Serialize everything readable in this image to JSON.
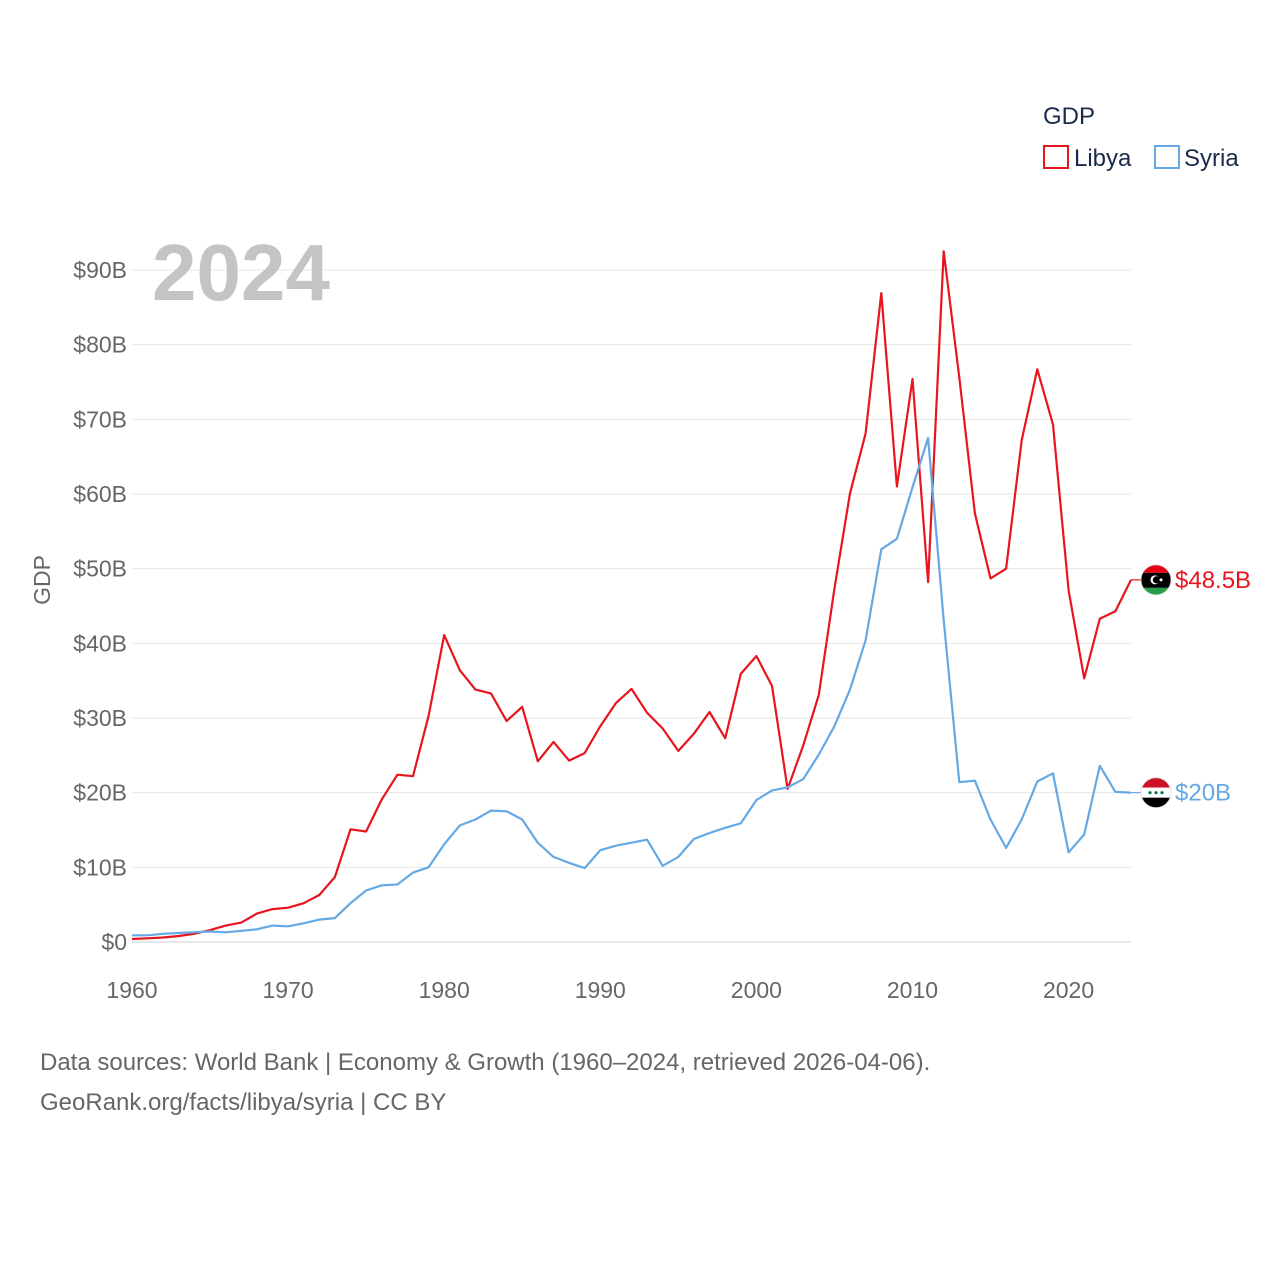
{
  "chart_data": {
    "type": "line",
    "title": "GDP",
    "ylabel": "GDP",
    "xlabel": "",
    "year_overlay": "2024",
    "xlim": [
      1960,
      2024
    ],
    "ylim": [
      0,
      90
    ],
    "x_ticks": [
      "1960",
      "1970",
      "1980",
      "1990",
      "2000",
      "2010",
      "2020"
    ],
    "y_ticks": [
      "$0",
      "$10B",
      "$20B",
      "$30B",
      "$40B",
      "$50B",
      "$60B",
      "$70B",
      "$80B",
      "$90B"
    ],
    "x": [
      1960,
      1961,
      1962,
      1963,
      1964,
      1965,
      1966,
      1967,
      1968,
      1969,
      1970,
      1971,
      1972,
      1973,
      1974,
      1975,
      1976,
      1977,
      1978,
      1979,
      1980,
      1981,
      1982,
      1983,
      1984,
      1985,
      1986,
      1987,
      1988,
      1989,
      1990,
      1991,
      1992,
      1993,
      1994,
      1995,
      1996,
      1997,
      1998,
      1999,
      2000,
      2001,
      2002,
      2003,
      2004,
      2005,
      2006,
      2007,
      2008,
      2009,
      2010,
      2011,
      2012,
      2013,
      2014,
      2015,
      2016,
      2017,
      2018,
      2019,
      2020,
      2021,
      2022,
      2023,
      2024
    ],
    "series": [
      {
        "name": "Libya",
        "color": "#e8141e",
        "flag": "libya-flag",
        "end_label": "$48.5B",
        "values": [
          0.4,
          0.5,
          0.6,
          0.8,
          1.1,
          1.6,
          2.2,
          2.6,
          3.8,
          4.4,
          4.6,
          5.2,
          6.3,
          8.7,
          15.1,
          14.8,
          19.1,
          22.4,
          22.2,
          30.3,
          41.1,
          36.4,
          33.8,
          33.3,
          29.6,
          31.5,
          24.2,
          26.8,
          24.3,
          25.3,
          28.9,
          32.0,
          33.9,
          30.7,
          28.6,
          25.6,
          27.9,
          30.8,
          27.3,
          35.9,
          38.3,
          34.3,
          20.5,
          26.3,
          33.1,
          47.3,
          60.1,
          68.1,
          86.9,
          61.0,
          75.4,
          48.2,
          92.5,
          75.6,
          57.4,
          48.7,
          50.0,
          67.2,
          76.7,
          69.3,
          47.1,
          35.3,
          43.3,
          44.3,
          48.5
        ]
      },
      {
        "name": "Syria",
        "color": "#64a8e4",
        "flag": "syria-flag",
        "end_label": "$20B",
        "values": [
          0.9,
          0.9,
          1.1,
          1.2,
          1.3,
          1.4,
          1.3,
          1.5,
          1.7,
          2.2,
          2.1,
          2.5,
          3.0,
          3.2,
          5.2,
          6.9,
          7.6,
          7.7,
          9.3,
          10.0,
          13.1,
          15.6,
          16.4,
          17.6,
          17.5,
          16.4,
          13.3,
          11.4,
          10.6,
          9.9,
          12.3,
          12.9,
          13.3,
          13.7,
          10.2,
          11.4,
          13.8,
          14.6,
          15.3,
          15.9,
          19.0,
          20.3,
          20.7,
          21.8,
          25.1,
          28.9,
          33.8,
          40.4,
          52.6,
          54.0,
          60.9,
          67.5,
          43.1,
          21.4,
          21.6,
          16.4,
          12.6,
          16.4,
          21.5,
          22.6,
          12.0,
          14.4,
          23.6,
          20.1,
          20.0
        ]
      }
    ],
    "legend": {
      "title": "GDP",
      "position": "top-right"
    }
  },
  "footer": {
    "source_line": "Data sources: World Bank | Economy & Growth (1960–2024, retrieved 2026-04-06).",
    "credit_line": "GeoRank.org/facts/libya/syria | CC BY"
  }
}
